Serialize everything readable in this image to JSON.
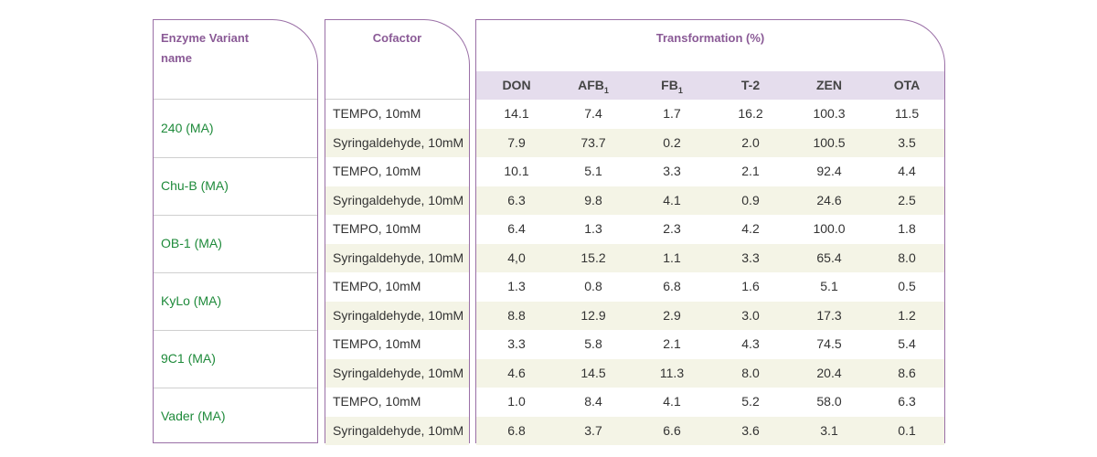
{
  "headers": {
    "enzyme": "Enzyme Variant name",
    "cofactor": "Cofactor",
    "transformation": "Transformation (%)"
  },
  "columns": [
    {
      "label": "DON",
      "sub": ""
    },
    {
      "label": "AFB",
      "sub": "1"
    },
    {
      "label": "FB",
      "sub": "1"
    },
    {
      "label": "T-2",
      "sub": ""
    },
    {
      "label": "ZEN",
      "sub": ""
    },
    {
      "label": "OTA",
      "sub": ""
    }
  ],
  "groups": [
    {
      "enzyme": "240 (MA)",
      "rows": [
        {
          "cofactor": "TEMPO, 10mM",
          "values": [
            "14.1",
            "7.4",
            "1.7",
            "16.2",
            "100.3",
            "11.5"
          ]
        },
        {
          "cofactor": "Syringaldehyde, 10mM",
          "values": [
            "7.9",
            "73.7",
            "0.2",
            "2.0",
            "100.5",
            "3.5"
          ]
        }
      ]
    },
    {
      "enzyme": "Chu-B (MA)",
      "rows": [
        {
          "cofactor": "TEMPO, 10mM",
          "values": [
            "10.1",
            "5.1",
            "3.3",
            "2.1",
            "92.4",
            "4.4"
          ]
        },
        {
          "cofactor": "Syringaldehyde, 10mM",
          "values": [
            "6.3",
            "9.8",
            "4.1",
            "0.9",
            "24.6",
            "2.5"
          ]
        }
      ]
    },
    {
      "enzyme": "OB-1 (MA)",
      "rows": [
        {
          "cofactor": "TEMPO, 10mM",
          "values": [
            "6.4",
            "1.3",
            "2.3",
            "4.2",
            "100.0",
            "1.8"
          ]
        },
        {
          "cofactor": "Syringaldehyde, 10mM",
          "values": [
            "4,0",
            "15.2",
            "1.1",
            "3.3",
            "65.4",
            "8.0"
          ]
        }
      ]
    },
    {
      "enzyme": "KyLo (MA)",
      "rows": [
        {
          "cofactor": "TEMPO, 10mM",
          "values": [
            "1.3",
            "0.8",
            "6.8",
            "1.6",
            "5.1",
            "0.5"
          ]
        },
        {
          "cofactor": "Syringaldehyde, 10mM",
          "values": [
            "8.8",
            "12.9",
            "2.9",
            "3.0",
            "17.3",
            "1.2"
          ]
        }
      ]
    },
    {
      "enzyme": "9C1 (MA)",
      "rows": [
        {
          "cofactor": "TEMPO, 10mM",
          "values": [
            "3.3",
            "5.8",
            "2.1",
            "4.3",
            "74.5",
            "5.4"
          ]
        },
        {
          "cofactor": "Syringaldehyde, 10mM",
          "values": [
            "4.6",
            "14.5",
            "11.3",
            "8.0",
            "20.4",
            "8.6"
          ]
        }
      ]
    },
    {
      "enzyme": "Vader (MA)",
      "rows": [
        {
          "cofactor": "TEMPO, 10mM",
          "values": [
            "1.0",
            "8.4",
            "4.1",
            "5.2",
            "58.0",
            "6.3"
          ]
        },
        {
          "cofactor": "Syringaldehyde, 10mM",
          "values": [
            "6.8",
            "3.7",
            "6.6",
            "3.6",
            "3.1",
            "0.1"
          ]
        }
      ]
    }
  ]
}
